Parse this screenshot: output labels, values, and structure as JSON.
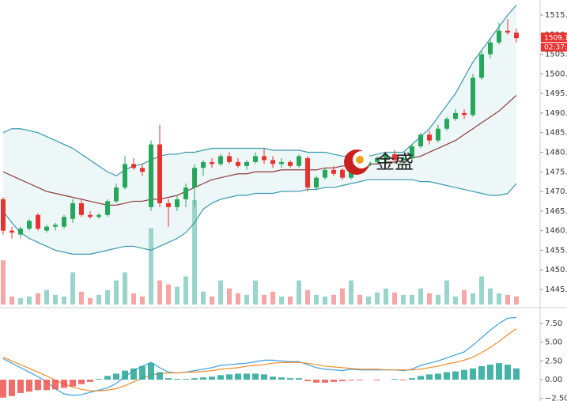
{
  "watermark": "金盛",
  "chart_data": {
    "type": "candlestick",
    "up_color": "#26a65b",
    "down_color": "#e8322f",
    "ylim": [
      1441.16,
      1518.83
    ],
    "yticks": [
      {
        "value": 1445,
        "label": "1445.0"
      },
      {
        "value": 1450,
        "label": "1450.0"
      },
      {
        "value": 1455,
        "label": "1455.0"
      },
      {
        "value": 1460,
        "label": "1460.0"
      },
      {
        "value": 1465,
        "label": "1465.0"
      },
      {
        "value": 1470,
        "label": "1470.0"
      },
      {
        "value": 1475,
        "label": "1475.0"
      },
      {
        "value": 1480,
        "label": "1480.0"
      },
      {
        "value": 1485,
        "label": "1485.0"
      },
      {
        "value": 1490,
        "label": "1490.0"
      },
      {
        "value": 1495,
        "label": "1495.0"
      },
      {
        "value": 1500,
        "label": "1500.0"
      },
      {
        "value": 1505,
        "label": "1505.0"
      },
      {
        "value": 1510,
        "label": "1510.0"
      },
      {
        "value": 1515,
        "label": "1515.0"
      }
    ],
    "last_price": {
      "value": 1509.1,
      "label": "1509.10"
    },
    "countdown": "02:37:48",
    "open": [
      1468,
      1460,
      1459,
      1460.5,
      1464,
      1460,
      1461,
      1461,
      1463,
      1467,
      1464,
      1463.5,
      1464,
      1467.5,
      1471,
      1477,
      1476,
      1466,
      1482,
      1467,
      1466,
      1468,
      1471,
      1476,
      1477.5,
      1477,
      1479,
      1477.5,
      1476.5,
      1477.5,
      1479,
      1478,
      1477,
      1477.5,
      1476.5,
      1478.5,
      1471,
      1473.5,
      1475.5,
      1475.5,
      1473.5,
      1478,
      1476.5,
      1477.5,
      1478.5,
      1479.5,
      1478,
      1478.5,
      1481.5,
      1484.5,
      1483,
      1486,
      1488.5,
      1490,
      1489.5,
      1499,
      1505,
      1508,
      1511,
      1510.5
    ],
    "high": [
      1468.5,
      1461,
      1461,
      1463,
      1464.5,
      1461.5,
      1462,
      1464,
      1468,
      1468,
      1465,
      1464.5,
      1468,
      1472,
      1479,
      1478.5,
      1477,
      1483,
      1487,
      1468,
      1469,
      1472,
      1477,
      1478,
      1478.5,
      1479.5,
      1480,
      1478.5,
      1478,
      1480,
      1481,
      1479,
      1478.5,
      1478,
      1479.5,
      1479,
      1474,
      1476,
      1476.5,
      1476,
      1480,
      1479,
      1478,
      1479,
      1480,
      1480.5,
      1479,
      1482,
      1485,
      1485.5,
      1487,
      1489,
      1491,
      1491,
      1500,
      1506,
      1509,
      1513,
      1514,
      1511.5
    ],
    "low": [
      1459,
      1458,
      1458,
      1460,
      1460,
      1459.5,
      1460,
      1460.5,
      1462,
      1463.5,
      1463,
      1463,
      1463.5,
      1467,
      1470.5,
      1475.5,
      1474,
      1465,
      1466,
      1461,
      1465,
      1466,
      1466,
      1474,
      1476,
      1476.5,
      1477,
      1476,
      1475.5,
      1477,
      1477,
      1476,
      1476,
      1476,
      1476,
      1470,
      1470.5,
      1473,
      1474,
      1473,
      1473,
      1476,
      1476,
      1477,
      1477,
      1477,
      1477,
      1478,
      1481,
      1482,
      1482.5,
      1485.5,
      1488,
      1488.5,
      1489,
      1498.5,
      1504,
      1507.5,
      1510,
      1508
    ],
    "close": [
      1460,
      1459.5,
      1460.5,
      1462.5,
      1460.5,
      1461,
      1461.5,
      1463.5,
      1467,
      1464,
      1463.5,
      1464,
      1467.5,
      1471,
      1477,
      1476,
      1475,
      1482,
      1467,
      1466,
      1468,
      1471,
      1476,
      1477.5,
      1477,
      1479,
      1477.5,
      1476.5,
      1477.5,
      1479,
      1478,
      1477,
      1477.5,
      1476.5,
      1479,
      1471,
      1473.5,
      1475.5,
      1474.5,
      1473.5,
      1478,
      1476.5,
      1477.5,
      1478.5,
      1479.5,
      1478,
      1478.5,
      1481.5,
      1484.5,
      1483,
      1486,
      1488.5,
      1490,
      1489.5,
      1499,
      1505,
      1508,
      1511,
      1510.5,
      1509.1
    ],
    "bands": {
      "upper": [
        1485,
        1486,
        1486,
        1485.5,
        1485,
        1484,
        1483,
        1482,
        1481,
        1479.5,
        1478,
        1476.5,
        1475,
        1474,
        1475.5,
        1476.5,
        1477,
        1478,
        1479,
        1479.5,
        1479.5,
        1480,
        1480,
        1480.5,
        1481,
        1481,
        1481,
        1481,
        1481,
        1481,
        1481,
        1480.5,
        1480.5,
        1480.5,
        1480.5,
        1480,
        1480,
        1480,
        1479.5,
        1479,
        1479,
        1479,
        1479,
        1479.5,
        1480,
        1480,
        1480,
        1482,
        1484,
        1486,
        1489,
        1492,
        1495,
        1499,
        1503,
        1506,
        1509,
        1512,
        1515,
        1517.5
      ],
      "middle": [
        1475,
        1474,
        1473,
        1472,
        1471,
        1470,
        1469.5,
        1469,
        1468.5,
        1468,
        1467.5,
        1467,
        1466.5,
        1466.5,
        1467,
        1467.5,
        1467.5,
        1468,
        1468,
        1468.5,
        1469,
        1470,
        1471,
        1472,
        1473,
        1473.5,
        1474,
        1474.5,
        1474.5,
        1475,
        1475,
        1475,
        1475.5,
        1475.5,
        1475.5,
        1475.5,
        1475.5,
        1476,
        1476,
        1476.5,
        1476.5,
        1477,
        1477,
        1477,
        1477.5,
        1477.5,
        1478,
        1478.5,
        1479,
        1480,
        1481,
        1482,
        1483,
        1484.5,
        1486,
        1487.5,
        1489,
        1490.5,
        1492.5,
        1494.5
      ],
      "lower": [
        1465,
        1462,
        1459.5,
        1458,
        1457,
        1456,
        1455,
        1454.5,
        1454,
        1454,
        1454,
        1454.5,
        1455,
        1455.5,
        1456,
        1456,
        1455.5,
        1455,
        1456,
        1457,
        1458,
        1459.5,
        1462,
        1465.5,
        1467,
        1468,
        1468.5,
        1469,
        1469,
        1469.5,
        1469.5,
        1469.5,
        1470,
        1470,
        1470,
        1470.5,
        1470.5,
        1471,
        1471,
        1471.5,
        1472,
        1472.5,
        1473,
        1473,
        1473,
        1473,
        1473,
        1473,
        1472.5,
        1472.5,
        1472,
        1471.5,
        1471,
        1470.5,
        1470,
        1469.5,
        1469,
        1469,
        1469.5,
        1472
      ]
    },
    "volume": [
      55,
      10,
      8,
      10,
      14,
      18,
      12,
      10,
      40,
      16,
      8,
      12,
      18,
      30,
      40,
      14,
      10,
      95,
      30,
      25,
      22,
      35,
      130,
      16,
      10,
      30,
      20,
      14,
      12,
      30,
      12,
      16,
      10,
      10,
      30,
      18,
      12,
      10,
      12,
      20,
      30,
      12,
      10,
      15,
      20,
      15,
      12,
      12,
      20,
      14,
      12,
      30,
      10,
      18,
      14,
      35,
      20,
      14,
      12,
      10
    ],
    "macd": {
      "ylim": [
        -2.85,
        9.29
      ],
      "yticks": [
        {
          "value": -2.5,
          "label": "−2.50"
        },
        {
          "value": 0,
          "label": "0.00"
        },
        {
          "value": 2.5,
          "label": "2.50"
        },
        {
          "value": 5,
          "label": "5.00"
        },
        {
          "value": 7.5,
          "label": "7.50"
        }
      ],
      "dif": [
        2.8,
        2.2,
        1.6,
        1.0,
        0.4,
        -0.3,
        -1.2,
        -1.9,
        -2.1,
        -2.0,
        -1.7,
        -1.4,
        -1.1,
        -0.5,
        0.4,
        1.2,
        1.8,
        2.3,
        1.6,
        1.0,
        0.9,
        1.0,
        1.2,
        1.4,
        1.6,
        1.9,
        2.0,
        2.1,
        2.2,
        2.4,
        2.6,
        2.6,
        2.5,
        2.4,
        2.4,
        2.0,
        1.6,
        1.4,
        1.3,
        1.2,
        1.4,
        1.3,
        1.3,
        1.3,
        1.3,
        1.3,
        1.2,
        1.4,
        1.9,
        2.2,
        2.5,
        2.9,
        3.3,
        3.7,
        4.6,
        5.6,
        6.6,
        7.5,
        8.2,
        8.3
      ],
      "dea": [
        3.0,
        2.5,
        2.0,
        1.5,
        1.0,
        0.5,
        -0.1,
        -0.6,
        -1.0,
        -1.3,
        -1.5,
        -1.5,
        -1.4,
        -1.2,
        -0.8,
        -0.3,
        0.2,
        0.6,
        0.8,
        0.9,
        0.9,
        1.0,
        1.0,
        1.1,
        1.2,
        1.4,
        1.5,
        1.6,
        1.8,
        1.9,
        2.0,
        2.2,
        2.3,
        2.3,
        2.3,
        2.2,
        2.0,
        1.8,
        1.7,
        1.6,
        1.5,
        1.4,
        1.4,
        1.4,
        1.3,
        1.3,
        1.3,
        1.3,
        1.4,
        1.6,
        1.8,
        2.1,
        2.3,
        2.6,
        3.0,
        3.6,
        4.3,
        5.1,
        6.0,
        6.8
      ],
      "hist": [
        -2.4,
        -2.2,
        -1.8,
        -1.6,
        -1.4,
        -1.4,
        -1.3,
        -1.1,
        -0.9,
        -0.6,
        -0.3,
        0.1,
        0.5,
        0.8,
        1.2,
        1.5,
        1.8,
        2.2,
        1.0,
        0.2,
        0.1,
        0.1,
        0.2,
        0.3,
        0.4,
        0.6,
        0.7,
        0.8,
        0.8,
        0.8,
        0.7,
        0.4,
        0.3,
        0.2,
        0.2,
        -0.2,
        -0.4,
        -0.4,
        -0.3,
        -0.2,
        -0.1,
        -0.1,
        0,
        -0.1,
        0,
        0.1,
        -0.1,
        0.2,
        0.5,
        0.7,
        0.8,
        1.0,
        1.1,
        1.3,
        1.5,
        1.8,
        2.0,
        2.2,
        2.0,
        1.5
      ]
    }
  }
}
